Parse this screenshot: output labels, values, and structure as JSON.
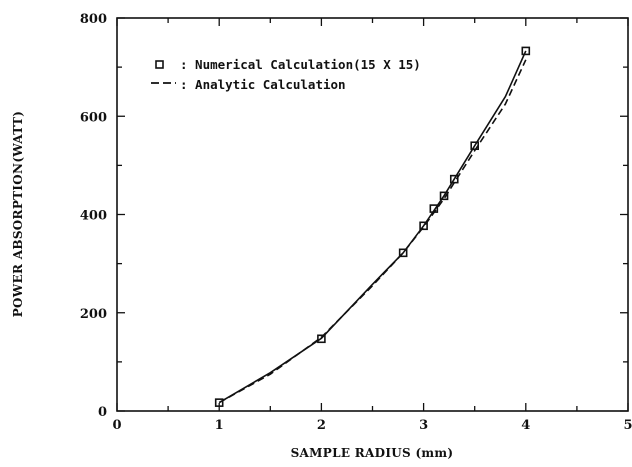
{
  "chart_data": {
    "type": "line",
    "title": "",
    "xlabel": "SAMPLE RADIUS (mm)",
    "ylabel": "POWER ABSORPTION(WATT)",
    "xlim": [
      0,
      5
    ],
    "ylim": [
      0,
      800
    ],
    "x_ticks": [
      "0",
      "1",
      "2",
      "3",
      "4",
      "5"
    ],
    "y_ticks": [
      "0",
      "200",
      "400",
      "600",
      "800"
    ],
    "legend_position": "top-left",
    "grid": false,
    "series": [
      {
        "name": ": Numerical Calculation(15 X 15)",
        "style": "markers",
        "marker": "square",
        "x": [
          1.0,
          2.0,
          2.8,
          3.0,
          3.1,
          3.2,
          3.3,
          3.5,
          4.0
        ],
        "y": [
          17,
          147,
          322,
          377,
          412,
          438,
          472,
          540,
          733
        ]
      },
      {
        "name": ": Analytic Calculation",
        "style": "dashed",
        "x": [
          1.0,
          1.5,
          2.0,
          2.5,
          2.8,
          3.0,
          3.2,
          3.5,
          3.8,
          4.0
        ],
        "y": [
          17,
          75,
          150,
          255,
          322,
          375,
          432,
          530,
          625,
          715
        ]
      },
      {
        "name": "",
        "style": "solid",
        "x": [
          1.0,
          1.5,
          2.0,
          2.5,
          2.8,
          3.0,
          3.2,
          3.5,
          3.8,
          4.0
        ],
        "y": [
          17,
          78,
          148,
          258,
          322,
          377,
          438,
          540,
          640,
          733
        ]
      }
    ]
  }
}
